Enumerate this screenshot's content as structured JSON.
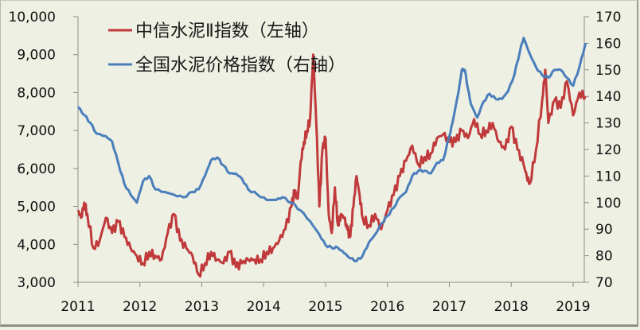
{
  "chart_data": {
    "type": "line",
    "title": "",
    "xlabel": "",
    "ylabel_left": "",
    "ylabel_right": "",
    "x_ticks": [
      "2011",
      "2012",
      "2013",
      "2014",
      "2015",
      "2016",
      "2017",
      "2018",
      "2019"
    ],
    "y_left_ticks": [
      "3,000",
      "4,000",
      "5,000",
      "6,000",
      "7,000",
      "8,000",
      "9,000",
      "10,000"
    ],
    "y_left_range": [
      3000,
      10000
    ],
    "y_right_ticks": [
      "70",
      "80",
      "90",
      "100",
      "110",
      "120",
      "130",
      "140",
      "150",
      "160",
      "170"
    ],
    "y_right_range": [
      70,
      170
    ],
    "grid": false,
    "legend_position": "top-left inside",
    "series": [
      {
        "name": "中信水泥Ⅱ指数（左轴）",
        "axis": "left",
        "color": "#c0393b",
        "x": [
          2011.0,
          2011.05,
          2011.1,
          2011.15,
          2011.25,
          2011.35,
          2011.45,
          2011.55,
          2011.65,
          2011.75,
          2011.85,
          2011.95,
          2012.05,
          2012.15,
          2012.25,
          2012.35,
          2012.45,
          2012.55,
          2012.65,
          2012.75,
          2012.85,
          2012.95,
          2013.05,
          2013.15,
          2013.25,
          2013.35,
          2013.45,
          2013.55,
          2013.65,
          2013.75,
          2013.85,
          2013.95,
          2014.05,
          2014.15,
          2014.25,
          2014.35,
          2014.45,
          2014.5,
          2014.55,
          2014.6,
          2014.65,
          2014.7,
          2014.75,
          2014.8,
          2014.85,
          2014.9,
          2014.95,
          2015.0,
          2015.05,
          2015.1,
          2015.15,
          2015.2,
          2015.25,
          2015.3,
          2015.35,
          2015.4,
          2015.45,
          2015.5,
          2015.55,
          2015.6,
          2015.7,
          2015.8,
          2015.9,
          2016.0,
          2016.1,
          2016.2,
          2016.3,
          2016.4,
          2016.5,
          2016.6,
          2016.7,
          2016.8,
          2016.9,
          2017.0,
          2017.1,
          2017.2,
          2017.3,
          2017.4,
          2017.5,
          2017.6,
          2017.7,
          2017.8,
          2017.9,
          2018.0,
          2018.1,
          2018.2,
          2018.25,
          2018.3,
          2018.4,
          2018.5,
          2018.55,
          2018.6,
          2018.7,
          2018.8,
          2018.9,
          2019.0,
          2019.1,
          2019.2
        ],
        "values": [
          4900,
          4700,
          5100,
          4800,
          3900,
          4100,
          4700,
          4300,
          4600,
          4200,
          3900,
          3700,
          3500,
          3800,
          3700,
          3600,
          4300,
          4800,
          4100,
          3900,
          3700,
          3200,
          3500,
          3800,
          3600,
          3500,
          3800,
          3400,
          3500,
          3600,
          3600,
          3600,
          3800,
          3900,
          4100,
          4400,
          5000,
          5400,
          5200,
          6200,
          6700,
          7000,
          7300,
          9000,
          7200,
          5000,
          6500,
          6800,
          4800,
          4300,
          5500,
          4500,
          4800,
          4700,
          4400,
          4200,
          5000,
          5800,
          5300,
          4700,
          4500,
          4800,
          4400,
          4900,
          5300,
          5800,
          6200,
          6600,
          6100,
          6300,
          6400,
          6800,
          6900,
          6700,
          6700,
          7000,
          6800,
          7300,
          6900,
          7000,
          7200,
          6700,
          6500,
          7100,
          6500,
          6100,
          5800,
          5600,
          6500,
          7800,
          8600,
          7200,
          7800,
          7600,
          8300,
          7400,
          8000,
          7900
        ]
      },
      {
        "name": "全国水泥价格指数（右轴）",
        "axis": "right",
        "color": "#4a7ebb",
        "x": [
          2011.0,
          2011.1,
          2011.2,
          2011.3,
          2011.45,
          2011.55,
          2011.65,
          2011.75,
          2011.85,
          2011.95,
          2012.05,
          2012.15,
          2012.25,
          2012.4,
          2012.55,
          2012.7,
          2012.85,
          2012.95,
          2013.05,
          2013.15,
          2013.25,
          2013.35,
          2013.45,
          2013.55,
          2013.65,
          2013.75,
          2013.9,
          2014.05,
          2014.2,
          2014.3,
          2014.45,
          2014.6,
          2014.75,
          2014.9,
          2015.0,
          2015.1,
          2015.2,
          2015.3,
          2015.4,
          2015.5,
          2015.6,
          2015.7,
          2015.8,
          2015.9,
          2016.0,
          2016.1,
          2016.2,
          2016.3,
          2016.4,
          2016.5,
          2016.6,
          2016.7,
          2016.8,
          2016.9,
          2017.0,
          2017.05,
          2017.15,
          2017.2,
          2017.25,
          2017.3,
          2017.35,
          2017.45,
          2017.55,
          2017.65,
          2017.75,
          2017.85,
          2017.95,
          2018.05,
          2018.15,
          2018.2,
          2018.3,
          2018.4,
          2018.5,
          2018.6,
          2018.7,
          2018.8,
          2018.9,
          2019.0,
          2019.1,
          2019.2
        ],
        "values": [
          136,
          133,
          130,
          126,
          125,
          123,
          115,
          107,
          103,
          100,
          108,
          110,
          105,
          104,
          103,
          102,
          104,
          105,
          110,
          116,
          117,
          114,
          111,
          111,
          109,
          105,
          103,
          101,
          101,
          102,
          100,
          97,
          93,
          88,
          84,
          83,
          83,
          81,
          79,
          78,
          80,
          85,
          88,
          92,
          95,
          98,
          102,
          104,
          110,
          112,
          112,
          111,
          115,
          116,
          125,
          130,
          142,
          150,
          150,
          143,
          137,
          132,
          138,
          141,
          139,
          139,
          142,
          148,
          158,
          162,
          156,
          151,
          148,
          147,
          150,
          150,
          147,
          144,
          151,
          160
        ]
      }
    ]
  },
  "legend": [
    {
      "label": "中信水泥Ⅱ指数（左轴）",
      "color": "#c0393b"
    },
    {
      "label": "全国水泥价格指数（右轴）",
      "color": "#4a7ebb"
    }
  ]
}
